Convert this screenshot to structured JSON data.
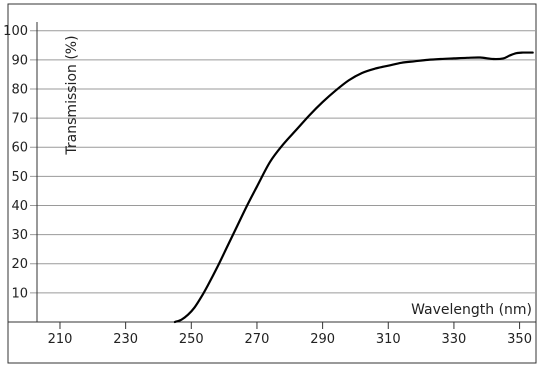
{
  "colors": {
    "background": "#ffffff",
    "frame": "#333333",
    "gridline": "#9a9a9a",
    "curve": "#000000",
    "text": "#222222"
  },
  "chart_data": {
    "type": "line",
    "title": "",
    "xlabel": "Wavelength (nm)",
    "ylabel": "Transmission (%)",
    "xlim": [
      203,
      355
    ],
    "ylim": [
      0,
      103
    ],
    "xticks": [
      210,
      230,
      250,
      270,
      290,
      310,
      330,
      350
    ],
    "yticks": [
      10,
      20,
      30,
      40,
      50,
      60,
      70,
      80,
      90,
      100
    ],
    "grid": "horizontal",
    "legend": "none",
    "series": [
      {
        "x": [
          245,
          247,
          249,
          251,
          253,
          255,
          258,
          261,
          264,
          267,
          270,
          274,
          278,
          282,
          286,
          290,
          294,
          298,
          302,
          306,
          310,
          314,
          318,
          322,
          326,
          330,
          334,
          338,
          342,
          345,
          347,
          349,
          351,
          354
        ],
        "y": [
          0,
          0.8,
          2.5,
          5,
          8.5,
          12.5,
          19,
          26,
          33,
          40,
          46.5,
          55,
          61,
          66,
          71,
          75.5,
          79.5,
          83,
          85.5,
          87,
          88,
          89,
          89.5,
          90,
          90.3,
          90.5,
          90.7,
          90.8,
          90.3,
          90.5,
          91.5,
          92.3,
          92.5,
          92.5
        ]
      }
    ]
  }
}
